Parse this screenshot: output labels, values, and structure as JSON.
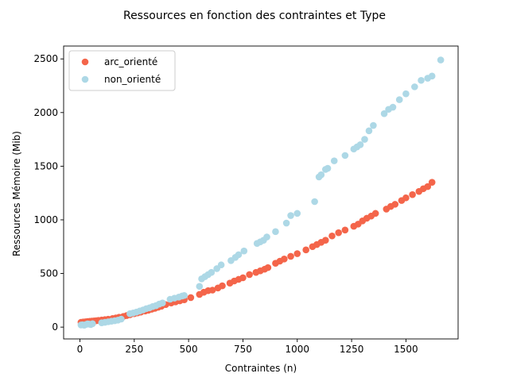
{
  "chart_data": {
    "type": "scatter",
    "title": "Ressources en fonction des contraintes et Type",
    "xlabel": "Contraintes (n)",
    "ylabel": "Ressources Mémoire (Mib)",
    "xlim": [
      -75,
      1740
    ],
    "ylim": [
      -110,
      2620
    ],
    "xticks": [
      0,
      250,
      500,
      750,
      1000,
      1250,
      1500
    ],
    "yticks": [
      0,
      500,
      1000,
      1500,
      2000,
      2500
    ],
    "grid": false,
    "legend_position": "top-left",
    "series": [
      {
        "name": "arc_orienté",
        "color": "#f4654a",
        "x": [
          5,
          15,
          25,
          35,
          45,
          55,
          65,
          75,
          85,
          100,
          115,
          130,
          150,
          165,
          180,
          200,
          215,
          230,
          250,
          265,
          280,
          300,
          315,
          330,
          345,
          360,
          375,
          395,
          420,
          440,
          460,
          480,
          510,
          550,
          570,
          590,
          610,
          635,
          655,
          690,
          710,
          730,
          750,
          780,
          810,
          830,
          850,
          865,
          900,
          920,
          940,
          970,
          1000,
          1040,
          1070,
          1090,
          1110,
          1130,
          1160,
          1190,
          1220,
          1260,
          1280,
          1300,
          1320,
          1340,
          1360,
          1410,
          1430,
          1450,
          1480,
          1500,
          1530,
          1560,
          1580,
          1600,
          1620
        ],
        "y": [
          45,
          48,
          50,
          52,
          54,
          56,
          58,
          60,
          63,
          66,
          70,
          74,
          80,
          86,
          92,
          100,
          108,
          115,
          125,
          133,
          140,
          150,
          158,
          167,
          175,
          185,
          195,
          210,
          225,
          235,
          245,
          255,
          275,
          305,
          325,
          340,
          345,
          365,
          385,
          410,
          430,
          445,
          460,
          490,
          510,
          525,
          540,
          555,
          595,
          615,
          635,
          660,
          685,
          720,
          750,
          770,
          790,
          810,
          850,
          880,
          905,
          940,
          960,
          990,
          1015,
          1035,
          1060,
          1100,
          1125,
          1145,
          1180,
          1205,
          1235,
          1265,
          1290,
          1310,
          1350
        ]
      },
      {
        "name": "non_orienté",
        "color": "#add8e6",
        "x": [
          5,
          12,
          20,
          28,
          35,
          42,
          50,
          58,
          100,
          115,
          130,
          145,
          160,
          175,
          190,
          230,
          245,
          260,
          275,
          290,
          305,
          320,
          335,
          350,
          365,
          380,
          415,
          435,
          455,
          470,
          480,
          550,
          560,
          575,
          590,
          605,
          630,
          650,
          695,
          715,
          730,
          755,
          815,
          830,
          845,
          860,
          900,
          950,
          970,
          1000,
          1080,
          1100,
          1110,
          1130,
          1140,
          1170,
          1220,
          1260,
          1275,
          1290,
          1310,
          1330,
          1350,
          1400,
          1420,
          1440,
          1470,
          1500,
          1540,
          1570,
          1600,
          1620,
          1660
        ],
        "y": [
          20,
          22,
          18,
          25,
          30,
          28,
          24,
          32,
          40,
          45,
          50,
          55,
          60,
          65,
          75,
          125,
          132,
          140,
          150,
          160,
          172,
          180,
          192,
          200,
          215,
          225,
          260,
          270,
          280,
          290,
          295,
          380,
          450,
          470,
          490,
          510,
          545,
          580,
          620,
          650,
          675,
          710,
          780,
          795,
          810,
          840,
          890,
          970,
          1040,
          1060,
          1170,
          1400,
          1420,
          1470,
          1480,
          1550,
          1600,
          1660,
          1680,
          1700,
          1750,
          1830,
          1880,
          1990,
          2030,
          2050,
          2120,
          2175,
          2240,
          2300,
          2320,
          2340,
          2490
        ]
      }
    ]
  }
}
